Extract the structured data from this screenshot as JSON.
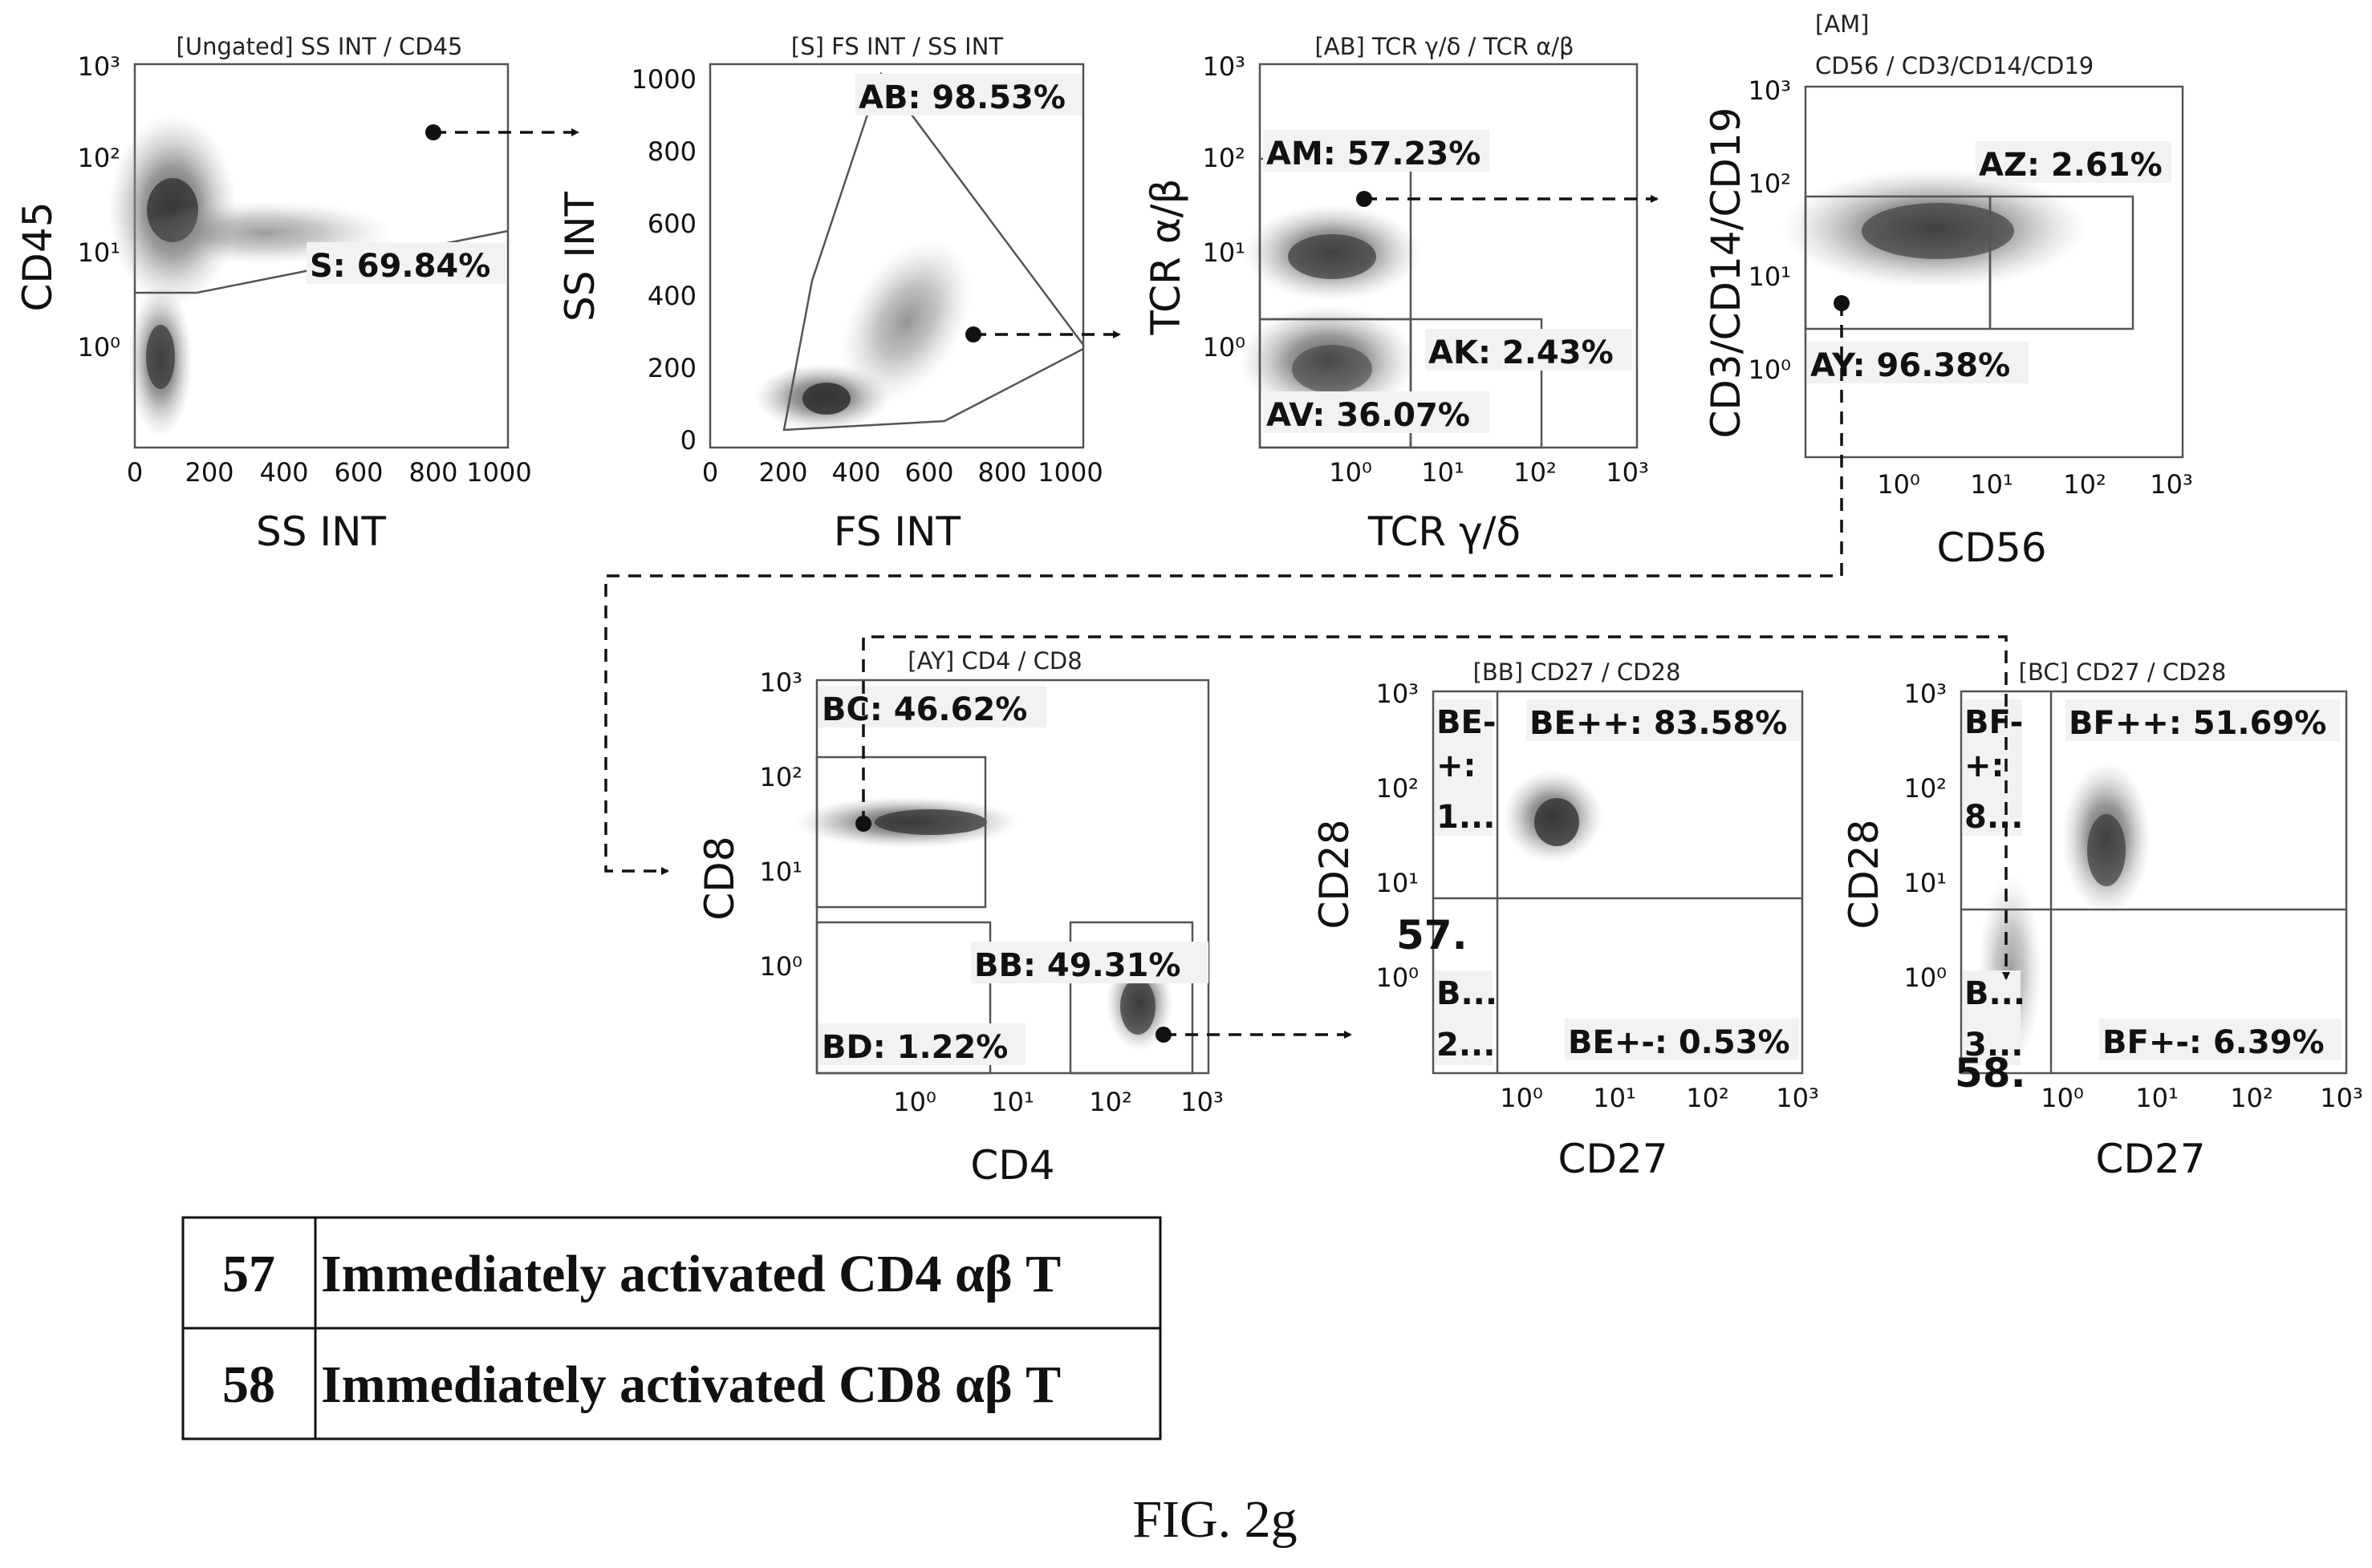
{
  "figure_caption": "FIG. 2g",
  "panels": {
    "p1": {
      "title": "[Ungated] SS INT / CD45",
      "xlabel": "SS INT",
      "ylabel": "CD45",
      "xticks": [
        "0",
        "200",
        "400",
        "600",
        "800",
        "1000"
      ],
      "yticks": [
        "10³",
        "10²",
        "10¹",
        "10⁰"
      ],
      "gates": [
        {
          "text": "S: 69.84%"
        }
      ]
    },
    "p2": {
      "title": "[S] FS INT / SS INT",
      "xlabel": "FS INT",
      "ylabel": "SS INT",
      "xticks": [
        "0",
        "200",
        "400",
        "600",
        "800",
        "1000"
      ],
      "yticks": [
        "1000",
        "800",
        "600",
        "400",
        "200",
        "0"
      ],
      "gates": [
        {
          "text": "AB: 98.53%"
        }
      ]
    },
    "p3": {
      "title": "[AB] TCR γ/δ / TCR α/β",
      "xlabel": "TCR γ/δ",
      "ylabel": "TCR α/β",
      "xticks": [
        "10⁰",
        "10¹",
        "10²",
        "10³"
      ],
      "yticks": [
        "10³",
        "10²",
        "10¹",
        "10⁰"
      ],
      "gates": [
        {
          "text": "AM: 57.23%"
        },
        {
          "text": "AK: 2.43%"
        },
        {
          "text": "AV: 36.07%"
        }
      ]
    },
    "p4": {
      "title_line1": "[AM]",
      "title_line2": "CD56 / CD3/CD14/CD19",
      "xlabel": "CD56",
      "ylabel": "CD3/CD14/CD19",
      "xticks": [
        "10⁰",
        "10¹",
        "10²",
        "10³"
      ],
      "yticks": [
        "10³",
        "10²",
        "10¹",
        "10⁰"
      ],
      "gates": [
        {
          "text": "AZ: 2.61%"
        },
        {
          "text": "AY: 96.38%"
        }
      ]
    },
    "p5": {
      "title": "[AY] CD4 / CD8",
      "xlabel": "CD4",
      "ylabel": "CD8",
      "xticks": [
        "10⁰",
        "10¹",
        "10²",
        "10³"
      ],
      "yticks": [
        "10³",
        "10²",
        "10¹",
        "10⁰"
      ],
      "gates": [
        {
          "text": "BC: 46.62%"
        },
        {
          "text": "BB: 49.31%"
        },
        {
          "text": "BD: 1.22%"
        }
      ]
    },
    "p6": {
      "title": "[BB] CD27 / CD28",
      "xlabel": "CD27",
      "ylabel": "CD28",
      "xticks": [
        "10⁰",
        "10¹",
        "10²",
        "10³"
      ],
      "yticks": [
        "10³",
        "10²",
        "10¹",
        "10⁰"
      ],
      "gates": [
        {
          "text": "BE++: 83.58%"
        },
        {
          "text": "BE+-: 0.53%"
        }
      ],
      "trunc_top": [
        "BE-",
        "+:",
        "1..."
      ],
      "trunc_bottom": [
        "B...",
        "2..."
      ],
      "marker": "57."
    },
    "p7": {
      "title": "[BC] CD27 / CD28",
      "xlabel": "CD27",
      "ylabel": "CD28",
      "xticks": [
        "10⁰",
        "10¹",
        "10²",
        "10³"
      ],
      "yticks": [
        "10³",
        "10²",
        "10¹",
        "10⁰"
      ],
      "gates": [
        {
          "text": "BF++: 51.69%"
        },
        {
          "text": "BF+-: 6.39%"
        }
      ],
      "trunc_top": [
        "BF-",
        "+:",
        "8..."
      ],
      "trunc_bottom": [
        "B...",
        "3..."
      ],
      "marker": "58."
    }
  },
  "legend": [
    {
      "number": "57",
      "label": "Immediately activated CD4 αβ T"
    },
    {
      "number": "58",
      "label": "Immediately activated CD8 αβ T"
    }
  ]
}
